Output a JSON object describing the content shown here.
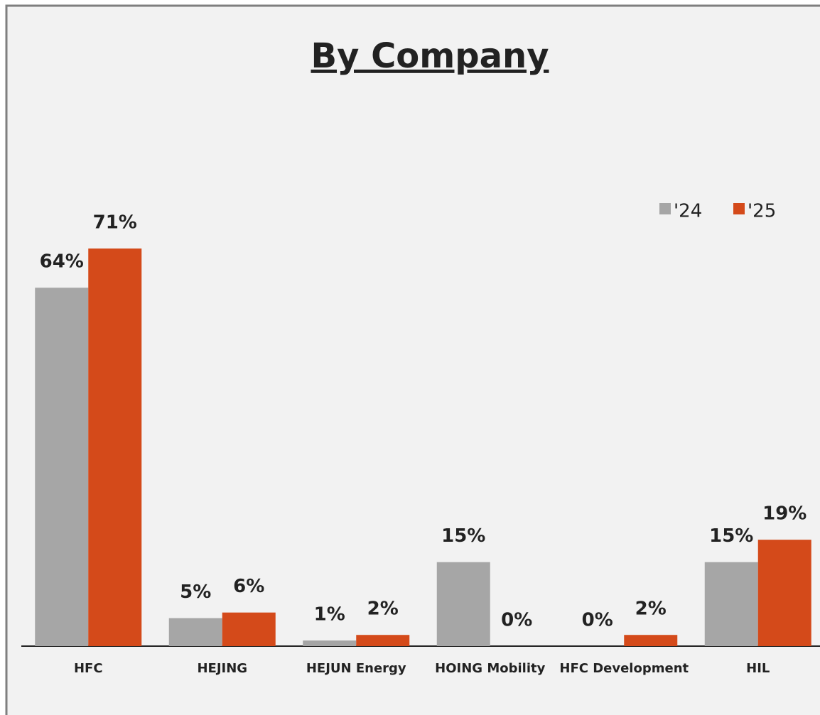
{
  "chart_data": {
    "type": "bar",
    "title": "By Company",
    "categories": [
      "HFC",
      "HEJING",
      "HEJUN Energy",
      "HOING Mobility",
      "HFC Development",
      "HIL"
    ],
    "series": [
      {
        "name": "'24",
        "color": "#a6a6a6",
        "values": [
          64,
          5,
          1,
          15,
          0,
          15
        ]
      },
      {
        "name": "'25",
        "color": "#d44a1a",
        "values": [
          71,
          6,
          2,
          0,
          2,
          19
        ]
      }
    ],
    "value_labels": [
      [
        "64%",
        "5%",
        "1%",
        "15%",
        "0%",
        "15%"
      ],
      [
        "71%",
        "6%",
        "2%",
        "0%",
        "2%",
        "19%"
      ]
    ],
    "legend": "top-right"
  }
}
